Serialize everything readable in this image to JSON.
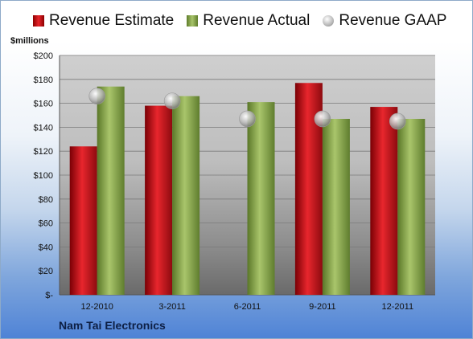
{
  "chart_data": {
    "type": "bar",
    "categories": [
      "12-2010",
      "3-2011",
      "6-2011",
      "9-2011",
      "12-2011"
    ],
    "series": [
      {
        "name": "Revenue Estimate",
        "kind": "bar",
        "color": "#d9252b",
        "values": [
          124,
          158,
          null,
          177,
          157
        ]
      },
      {
        "name": "Revenue Actual",
        "kind": "bar",
        "color": "#92b050",
        "values": [
          174,
          166,
          161,
          147,
          147
        ]
      },
      {
        "name": "Revenue GAAP",
        "kind": "marker",
        "color": "#b4b4b4",
        "values": [
          166,
          162,
          147,
          147,
          145
        ]
      }
    ],
    "ylabel": "$millions",
    "ylim": [
      0,
      200
    ],
    "yticks": [
      0,
      20,
      40,
      60,
      80,
      100,
      120,
      140,
      160,
      180,
      200
    ],
    "ytick_labels": [
      "$-",
      "$20",
      "$40",
      "$60",
      "$80",
      "$100",
      "$120",
      "$140",
      "$160",
      "$180",
      "$200"
    ],
    "grid": true,
    "legend_position": "top"
  },
  "legend": {
    "estimate": "Revenue Estimate",
    "actual": "Revenue Actual",
    "gaap": "Revenue GAAP"
  },
  "company": "Nam Tai Electronics"
}
